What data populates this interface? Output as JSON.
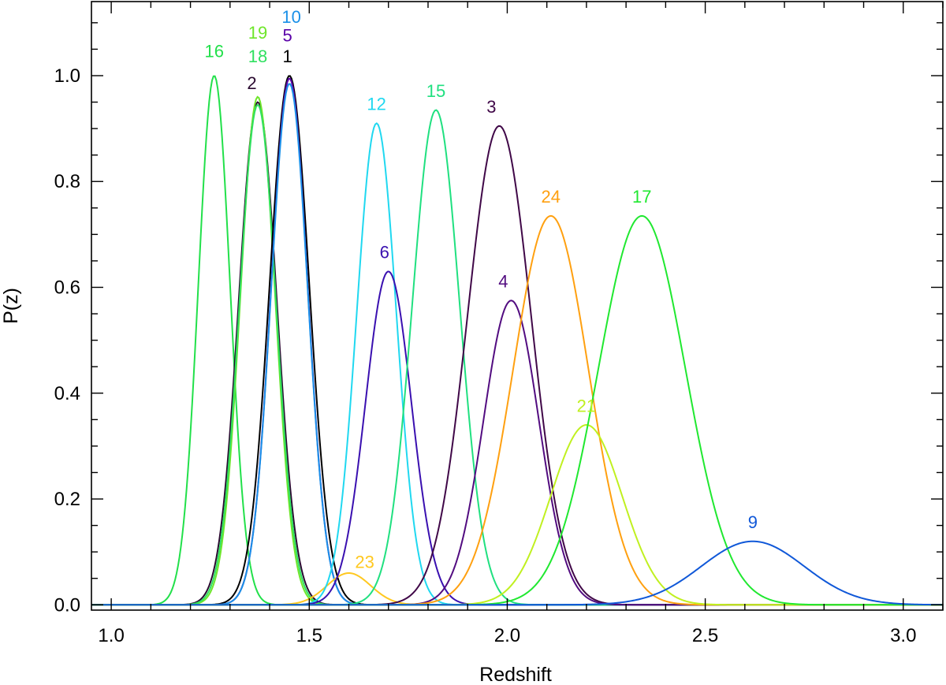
{
  "chart_data": {
    "type": "line",
    "title": "",
    "xlabel": "Redshift",
    "ylabel": "P(z)",
    "xlim": [
      0.95,
      3.1
    ],
    "ylim": [
      -0.01,
      1.14
    ],
    "xticks": [
      1.0,
      1.5,
      2.0,
      2.5,
      3.0
    ],
    "xtick_labels": [
      "1.0",
      "1.5",
      "2.0",
      "2.5",
      "3.0"
    ],
    "yticks": [
      0.0,
      0.2,
      0.4,
      0.6,
      0.8,
      1.0
    ],
    "ytick_labels": [
      "0.0",
      "0.2",
      "0.4",
      "0.6",
      "0.8",
      "1.0"
    ],
    "grid": false,
    "legend": "none",
    "series": [
      {
        "name": "16",
        "color": "#22e04a",
        "peak_z": 1.26,
        "peak_p": 1.0,
        "sigma": 0.04
      },
      {
        "name": "2",
        "color": "#2a0a30",
        "peak_z": 1.37,
        "peak_p": 0.95,
        "sigma": 0.048
      },
      {
        "name": "19",
        "color": "#6ee62a",
        "peak_z": 1.37,
        "peak_p": 0.96,
        "sigma": 0.044
      },
      {
        "name": "18",
        "color": "#30e060",
        "peak_z": 1.37,
        "peak_p": 0.945,
        "sigma": 0.046
      },
      {
        "name": "1",
        "color": "#000000",
        "peak_z": 1.45,
        "peak_p": 1.0,
        "sigma": 0.05
      },
      {
        "name": "5",
        "color": "#5a00a8",
        "peak_z": 1.45,
        "peak_p": 0.995,
        "sigma": 0.046
      },
      {
        "name": "10",
        "color": "#1a90e8",
        "peak_z": 1.45,
        "peak_p": 0.985,
        "sigma": 0.046
      },
      {
        "name": "23",
        "color": "#ffc820",
        "peak_z": 1.6,
        "peak_p": 0.06,
        "sigma": 0.055
      },
      {
        "name": "12",
        "color": "#20d8f0",
        "peak_z": 1.67,
        "peak_p": 0.91,
        "sigma": 0.05
      },
      {
        "name": "6",
        "color": "#3a10b0",
        "peak_z": 1.7,
        "peak_p": 0.63,
        "sigma": 0.058
      },
      {
        "name": "15",
        "color": "#20e080",
        "peak_z": 1.82,
        "peak_p": 0.935,
        "sigma": 0.06
      },
      {
        "name": "3",
        "color": "#400848",
        "peak_z": 1.98,
        "peak_p": 0.905,
        "sigma": 0.08
      },
      {
        "name": "4",
        "color": "#520c80",
        "peak_z": 2.01,
        "peak_p": 0.575,
        "sigma": 0.07
      },
      {
        "name": "24",
        "color": "#ffa010",
        "peak_z": 2.11,
        "peak_p": 0.735,
        "sigma": 0.095
      },
      {
        "name": "21",
        "color": "#c0f020",
        "peak_z": 2.2,
        "peak_p": 0.34,
        "sigma": 0.09
      },
      {
        "name": "17",
        "color": "#20e830",
        "peak_z": 2.34,
        "peak_p": 0.735,
        "sigma": 0.11
      },
      {
        "name": "9",
        "color": "#1058d8",
        "peak_z": 2.62,
        "peak_p": 0.12,
        "sigma": 0.13
      }
    ],
    "annotations": [
      {
        "text": "16",
        "x": 1.26,
        "y": 1.035,
        "color": "#22e04a"
      },
      {
        "text": "19",
        "x": 1.37,
        "y": 1.07,
        "color": "#6ee62a"
      },
      {
        "text": "18",
        "x": 1.37,
        "y": 1.025,
        "color": "#30e060"
      },
      {
        "text": "2",
        "x": 1.355,
        "y": 0.975,
        "color": "#2a0a30"
      },
      {
        "text": "10",
        "x": 1.455,
        "y": 1.1,
        "color": "#1a90e8"
      },
      {
        "text": "5",
        "x": 1.445,
        "y": 1.065,
        "color": "#5a00a8"
      },
      {
        "text": "1",
        "x": 1.445,
        "y": 1.025,
        "color": "#000000"
      },
      {
        "text": "12",
        "x": 1.67,
        "y": 0.935,
        "color": "#20d8f0"
      },
      {
        "text": "15",
        "x": 1.82,
        "y": 0.96,
        "color": "#20e080"
      },
      {
        "text": "3",
        "x": 1.96,
        "y": 0.93,
        "color": "#400848"
      },
      {
        "text": "6",
        "x": 1.69,
        "y": 0.655,
        "color": "#3a10b0"
      },
      {
        "text": "4",
        "x": 1.99,
        "y": 0.6,
        "color": "#520c80"
      },
      {
        "text": "24",
        "x": 2.11,
        "y": 0.76,
        "color": "#ffa010"
      },
      {
        "text": "17",
        "x": 2.34,
        "y": 0.76,
        "color": "#20e830"
      },
      {
        "text": "21",
        "x": 2.2,
        "y": 0.365,
        "color": "#c0f020"
      },
      {
        "text": "23",
        "x": 1.64,
        "y": 0.07,
        "color": "#ffc820"
      },
      {
        "text": "9",
        "x": 2.62,
        "y": 0.145,
        "color": "#1058d8"
      }
    ]
  }
}
